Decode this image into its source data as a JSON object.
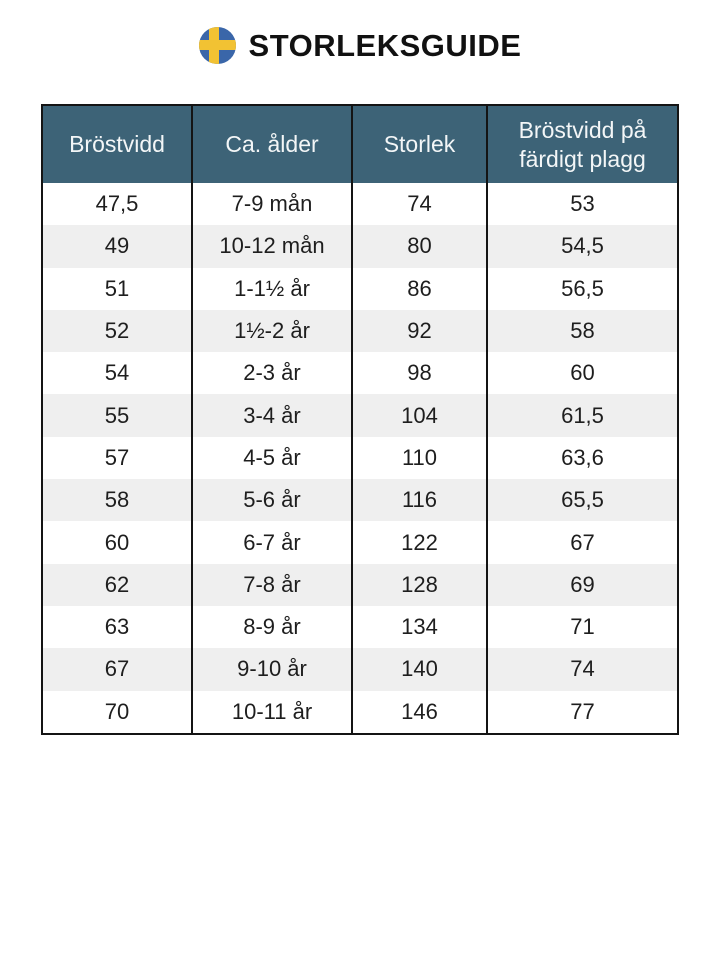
{
  "header": {
    "title": "STORLEKSGUIDE",
    "flag_icon": "swedish-flag-icon"
  },
  "table": {
    "columns": [
      "Bröstvidd",
      "Ca. ålder",
      "Storlek",
      "Bröstvidd på färdigt plagg"
    ],
    "rows": [
      [
        "47,5",
        "7-9 mån",
        "74",
        "53"
      ],
      [
        "49",
        "10-12 mån",
        "80",
        "54,5"
      ],
      [
        "51",
        "1-1½ år",
        "86",
        "56,5"
      ],
      [
        "52",
        "1½-2 år",
        "92",
        "58"
      ],
      [
        "54",
        "2-3 år",
        "98",
        "60"
      ],
      [
        "55",
        "3-4 år",
        "104",
        "61,5"
      ],
      [
        "57",
        "4-5 år",
        "110",
        "63,6"
      ],
      [
        "58",
        "5-6 år",
        "116",
        "65,5"
      ],
      [
        "60",
        "6-7 år",
        "122",
        "67"
      ],
      [
        "62",
        "7-8 år",
        "128",
        "69"
      ],
      [
        "63",
        "8-9 år",
        "134",
        "71"
      ],
      [
        "67",
        "9-10 år",
        "140",
        "74"
      ],
      [
        "70",
        "10-11 år",
        "146",
        "77"
      ]
    ],
    "colors": {
      "header_bg": "#3d6377",
      "header_text": "#f3f6f7",
      "stripe_bg": "#efefef",
      "border": "#141414",
      "flag_blue": "#3a66a9",
      "flag_yellow": "#f2c233"
    }
  }
}
